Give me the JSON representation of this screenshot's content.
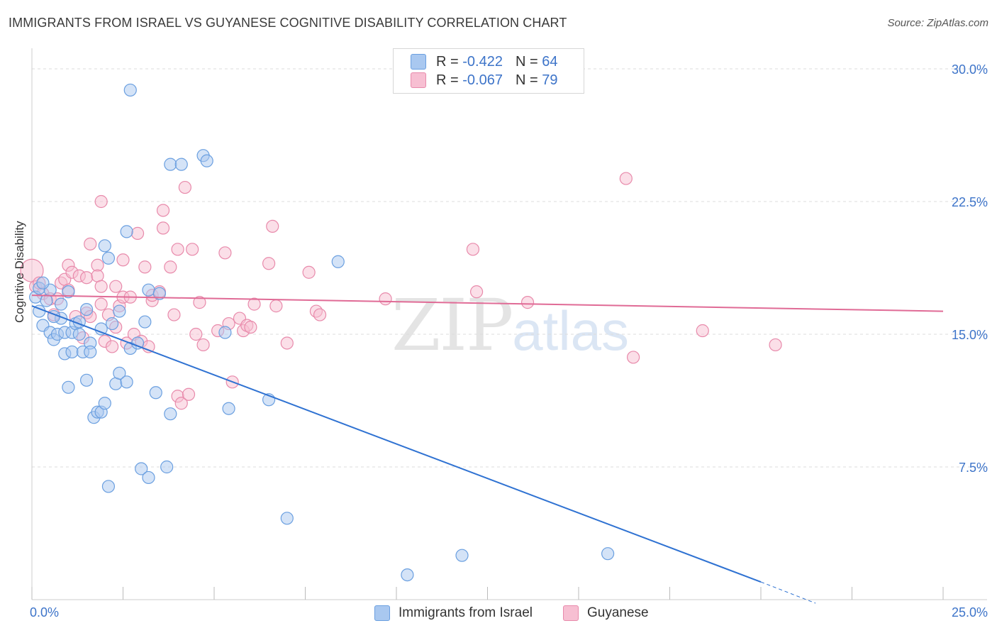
{
  "header": {
    "title": "IMMIGRANTS FROM ISRAEL VS GUYANESE COGNITIVE DISABILITY CORRELATION CHART",
    "source": "Source: ZipAtlas.com"
  },
  "watermark": {
    "zip": "ZIP",
    "atlas": "atlas"
  },
  "legend": {
    "rows": [
      {
        "r_label": "R =",
        "r_value": "-0.422",
        "n_label": "N =",
        "n_value": "64",
        "color": "#a9c8f0",
        "border": "#6a9fe0"
      },
      {
        "r_label": "R =",
        "r_value": "-0.067",
        "n_label": "N =",
        "n_value": "79",
        "color": "#f7bfd2",
        "border": "#e88aab"
      }
    ]
  },
  "bottom_legend": [
    {
      "label": "Immigrants from Israel",
      "color": "#a9c8f0",
      "border": "#6a9fe0"
    },
    {
      "label": "Guyanese",
      "color": "#f7bfd2",
      "border": "#e88aab"
    }
  ],
  "chart_data": {
    "type": "scatter",
    "title": "IMMIGRANTS FROM ISRAEL VS GUYANESE COGNITIVE DISABILITY CORRELATION CHART",
    "xlabel": "",
    "ylabel": "Cognitive Disability",
    "xlim": [
      0,
      25
    ],
    "ylim": [
      0,
      30
    ],
    "x_tick_labels": [
      "0.0%",
      "25.0%"
    ],
    "y_ticks": [
      7.5,
      15.0,
      22.5,
      30.0
    ],
    "y_tick_labels": [
      "7.5%",
      "15.0%",
      "22.5%",
      "30.0%"
    ],
    "grid": true,
    "legend_position": "top-center",
    "series": [
      {
        "name": "Immigrants from Israel",
        "color": "#6a9fe0",
        "fill": "#a9c8f0",
        "trend": {
          "x": [
            0.0,
            20.0
          ],
          "y": [
            16.6,
            1.0
          ],
          "dashed_to": [
            21.5,
            -0.2
          ]
        },
        "points": [
          [
            0.1,
            17.1
          ],
          [
            0.2,
            17.6
          ],
          [
            0.2,
            16.3
          ],
          [
            0.3,
            15.5
          ],
          [
            0.4,
            16.9
          ],
          [
            0.5,
            15.1
          ],
          [
            0.5,
            17.5
          ],
          [
            0.6,
            14.7
          ],
          [
            0.7,
            15.0
          ],
          [
            0.8,
            15.9
          ],
          [
            0.8,
            16.7
          ],
          [
            0.9,
            13.9
          ],
          [
            0.9,
            15.1
          ],
          [
            1.0,
            12.0
          ],
          [
            1.1,
            15.1
          ],
          [
            1.1,
            14.0
          ],
          [
            1.2,
            15.6
          ],
          [
            1.3,
            15.7
          ],
          [
            1.3,
            15.0
          ],
          [
            1.4,
            14.0
          ],
          [
            1.5,
            12.4
          ],
          [
            1.5,
            16.4
          ],
          [
            1.6,
            14.5
          ],
          [
            1.6,
            14.0
          ],
          [
            1.7,
            10.3
          ],
          [
            1.8,
            10.6
          ],
          [
            1.9,
            10.6
          ],
          [
            2.0,
            11.1
          ],
          [
            2.0,
            20.0
          ],
          [
            2.1,
            6.4
          ],
          [
            2.1,
            19.3
          ],
          [
            2.2,
            15.6
          ],
          [
            2.3,
            12.2
          ],
          [
            2.4,
            12.8
          ],
          [
            2.4,
            16.3
          ],
          [
            2.6,
            12.3
          ],
          [
            2.6,
            20.8
          ],
          [
            2.7,
            14.2
          ],
          [
            2.7,
            28.8
          ],
          [
            3.0,
            7.4
          ],
          [
            3.1,
            15.7
          ],
          [
            3.2,
            6.9
          ],
          [
            3.2,
            17.5
          ],
          [
            3.4,
            11.7
          ],
          [
            3.5,
            17.3
          ],
          [
            3.7,
            7.5
          ],
          [
            3.8,
            24.6
          ],
          [
            3.8,
            10.5
          ],
          [
            4.1,
            24.6
          ],
          [
            4.7,
            25.1
          ],
          [
            4.8,
            24.8
          ],
          [
            5.3,
            15.1
          ],
          [
            5.4,
            10.8
          ],
          [
            6.5,
            11.3
          ],
          [
            7.0,
            4.6
          ],
          [
            8.4,
            19.1
          ],
          [
            10.3,
            1.4
          ],
          [
            11.8,
            2.5
          ],
          [
            15.8,
            2.6
          ],
          [
            1.9,
            15.3
          ],
          [
            0.6,
            16.0
          ],
          [
            2.9,
            14.5
          ],
          [
            1.0,
            17.4
          ],
          [
            0.3,
            17.9
          ]
        ]
      },
      {
        "name": "Guyanese",
        "color": "#e88aab",
        "fill": "#f7bfd2",
        "trend": {
          "x": [
            0.0,
            25.0
          ],
          "y": [
            17.2,
            16.3
          ]
        },
        "points": [
          [
            0.0,
            18.6
          ],
          [
            0.1,
            17.7
          ],
          [
            0.2,
            17.9
          ],
          [
            0.3,
            17.3
          ],
          [
            0.5,
            17.0
          ],
          [
            0.6,
            16.1
          ],
          [
            0.7,
            17.0
          ],
          [
            0.8,
            17.9
          ],
          [
            0.9,
            18.1
          ],
          [
            1.0,
            17.5
          ],
          [
            1.0,
            18.9
          ],
          [
            1.1,
            18.5
          ],
          [
            1.2,
            16.0
          ],
          [
            1.3,
            18.3
          ],
          [
            1.4,
            14.8
          ],
          [
            1.5,
            18.2
          ],
          [
            1.5,
            16.2
          ],
          [
            1.6,
            16.0
          ],
          [
            1.6,
            20.1
          ],
          [
            1.8,
            18.9
          ],
          [
            1.8,
            18.3
          ],
          [
            1.9,
            17.7
          ],
          [
            1.9,
            16.7
          ],
          [
            1.9,
            22.5
          ],
          [
            2.0,
            14.6
          ],
          [
            2.1,
            16.1
          ],
          [
            2.2,
            14.3
          ],
          [
            2.3,
            15.4
          ],
          [
            2.3,
            17.7
          ],
          [
            2.4,
            16.6
          ],
          [
            2.5,
            17.1
          ],
          [
            2.5,
            19.2
          ],
          [
            2.6,
            14.5
          ],
          [
            2.7,
            17.1
          ],
          [
            2.8,
            15.0
          ],
          [
            2.9,
            20.7
          ],
          [
            3.0,
            14.6
          ],
          [
            3.1,
            18.8
          ],
          [
            3.2,
            14.3
          ],
          [
            3.3,
            16.9
          ],
          [
            3.3,
            17.2
          ],
          [
            3.5,
            17.4
          ],
          [
            3.6,
            22.0
          ],
          [
            3.6,
            21.0
          ],
          [
            3.8,
            18.8
          ],
          [
            3.9,
            16.1
          ],
          [
            4.0,
            19.8
          ],
          [
            4.0,
            11.5
          ],
          [
            4.1,
            11.1
          ],
          [
            4.2,
            23.3
          ],
          [
            4.3,
            11.6
          ],
          [
            4.4,
            19.8
          ],
          [
            4.5,
            15.0
          ],
          [
            4.6,
            16.8
          ],
          [
            4.7,
            14.4
          ],
          [
            5.1,
            15.2
          ],
          [
            5.3,
            19.6
          ],
          [
            5.4,
            15.6
          ],
          [
            5.5,
            12.3
          ],
          [
            5.7,
            15.9
          ],
          [
            5.8,
            15.2
          ],
          [
            5.9,
            15.5
          ],
          [
            6.0,
            15.4
          ],
          [
            6.1,
            16.7
          ],
          [
            6.5,
            19.0
          ],
          [
            6.6,
            21.1
          ],
          [
            6.7,
            16.6
          ],
          [
            7.0,
            14.5
          ],
          [
            7.6,
            18.5
          ],
          [
            7.8,
            16.3
          ],
          [
            7.9,
            16.1
          ],
          [
            9.7,
            17.0
          ],
          [
            12.1,
            19.8
          ],
          [
            12.2,
            17.4
          ],
          [
            13.6,
            16.8
          ],
          [
            16.3,
            23.8
          ],
          [
            16.5,
            13.7
          ],
          [
            18.4,
            15.2
          ],
          [
            20.4,
            14.4
          ]
        ]
      }
    ]
  }
}
